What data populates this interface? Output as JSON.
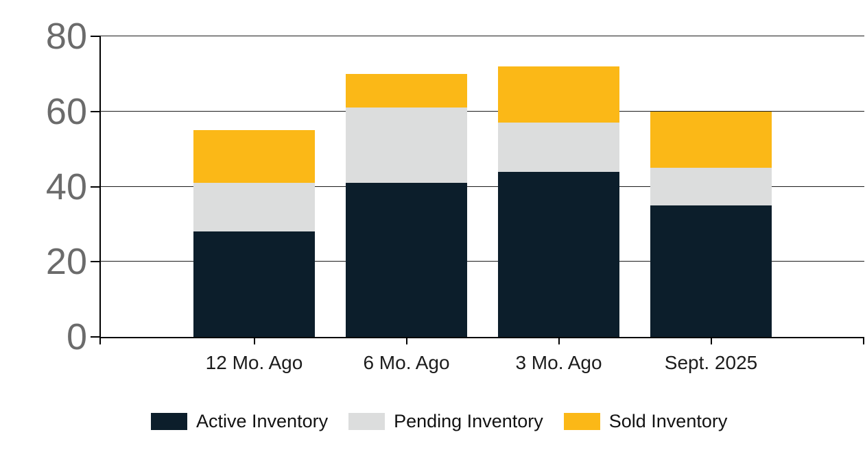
{
  "chart_data": {
    "type": "bar",
    "stacked": true,
    "title": "",
    "xlabel": "",
    "ylabel": "",
    "categories": [
      "12 Mo. Ago",
      "6 Mo. Ago",
      "3 Mo. Ago",
      "Sept. 2025"
    ],
    "series": [
      {
        "name": "Active Inventory",
        "color": "#0c1e2b",
        "values": [
          28,
          41,
          44,
          35
        ]
      },
      {
        "name": "Pending Inventory",
        "color": "#dcdddd",
        "values": [
          13,
          20,
          13,
          10
        ]
      },
      {
        "name": "Sold Inventory",
        "color": "#fbb817",
        "values": [
          14,
          9,
          15,
          15
        ]
      }
    ],
    "stack_totals": [
      55,
      70,
      72,
      60
    ],
    "ylim": [
      0,
      80
    ],
    "y_ticks": [
      0,
      20,
      40,
      60,
      80
    ],
    "grid": true,
    "legend_position": "bottom"
  },
  "colors": {
    "background": "#ffffff",
    "grid": "#1a1a1a",
    "axis": "#000000",
    "y_tick_label": "#6b6b6b",
    "x_tick_label": "#1c1c1c"
  }
}
